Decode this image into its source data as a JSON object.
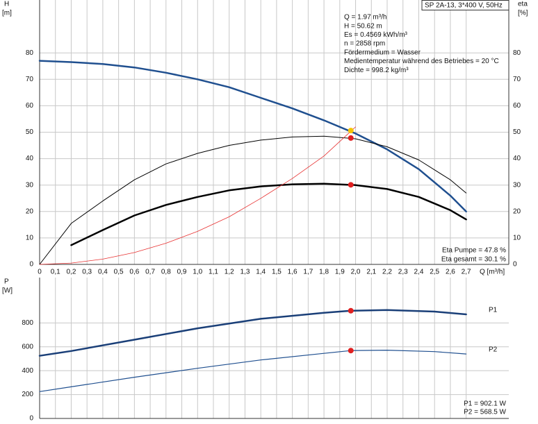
{
  "chart_data": [
    {
      "type": "line",
      "title": "SP 2A-13, 3*400 V, 50Hz",
      "y_label": "H",
      "y_unit": "[m]",
      "y2_label": "eta",
      "y2_unit": "[%]",
      "x_label": "Q [m³/h]",
      "xlim": [
        0,
        2.97
      ],
      "ylim": [
        0,
        100
      ],
      "y2lim": [
        0,
        100
      ],
      "xticks": [
        0,
        {
          "value": 0.1,
          "label": "0,1"
        },
        {
          "value": 0.2,
          "label": "0,2"
        },
        {
          "value": 0.3,
          "label": "0,3"
        },
        {
          "value": 0.4,
          "label": "0,4"
        },
        {
          "value": 0.5,
          "label": "0,5"
        },
        {
          "value": 0.6,
          "label": "0,6"
        },
        {
          "value": 0.7,
          "label": "0,7"
        },
        {
          "value": 0.8,
          "label": "0,8"
        },
        {
          "value": 0.9,
          "label": "0,9"
        },
        {
          "value": 1.0,
          "label": "1,0"
        },
        {
          "value": 1.1,
          "label": "1,1"
        },
        {
          "value": 1.2,
          "label": "1,2"
        },
        {
          "value": 1.3,
          "label": "1,3"
        },
        {
          "value": 1.4,
          "label": "1,4"
        },
        {
          "value": 1.5,
          "label": "1,5"
        },
        {
          "value": 1.6,
          "label": "1,6"
        },
        {
          "value": 1.7,
          "label": "1,7"
        },
        {
          "value": 1.8,
          "label": "1,8"
        },
        {
          "value": 1.9,
          "label": "1,9"
        },
        {
          "value": 2.0,
          "label": "2,0"
        },
        {
          "value": 2.1,
          "label": "2,1"
        },
        {
          "value": 2.2,
          "label": "2,2"
        },
        {
          "value": 2.3,
          "label": "2,3"
        },
        {
          "value": 2.4,
          "label": "2,4"
        },
        {
          "value": 2.5,
          "label": "2,5"
        },
        {
          "value": 2.6,
          "label": "2,6"
        },
        {
          "value": 2.7,
          "label": "2,7"
        }
      ],
      "xtick_labels": true,
      "yticks": [
        0,
        10,
        20,
        30,
        40,
        50,
        60,
        70,
        80
      ],
      "y2ticks": [
        0,
        10,
        20,
        30,
        40,
        50,
        60,
        70,
        80
      ],
      "grid": true,
      "series": [
        {
          "color": "#1f4f8f",
          "width": 2.5,
          "x": [
            0,
            0.2,
            0.4,
            0.6,
            0.8,
            1.0,
            1.2,
            1.4,
            1.6,
            1.8,
            2.0,
            2.2,
            2.4,
            2.6,
            2.7
          ],
          "values": [
            77,
            76.5,
            75.8,
            74.5,
            72.5,
            70,
            67,
            63,
            59,
            54.5,
            49.5,
            43.5,
            36,
            26,
            20
          ]
        },
        {
          "color": "#000000",
          "width": 1,
          "axis": "y2",
          "x": [
            0,
            0.2,
            0.4,
            0.6,
            0.8,
            1.0,
            1.2,
            1.4,
            1.6,
            1.8,
            2.0,
            2.2,
            2.4,
            2.6,
            2.7
          ],
          "values": [
            0,
            15.5,
            24,
            32,
            38,
            42,
            45,
            47,
            48.2,
            48.5,
            47.5,
            44.5,
            39.5,
            32,
            27
          ]
        },
        {
          "color": "#000000",
          "width": 2.5,
          "axis": "y2",
          "x": [
            0.2,
            0.4,
            0.6,
            0.8,
            1.0,
            1.2,
            1.4,
            1.6,
            1.8,
            2.0,
            2.2,
            2.4,
            2.6,
            2.7
          ],
          "values": [
            7.3,
            13,
            18.5,
            22.5,
            25.5,
            28,
            29.5,
            30.3,
            30.5,
            30,
            28.5,
            25.5,
            20.5,
            17
          ]
        },
        {
          "color": "#e83030",
          "width": 0.8,
          "x": [
            0,
            0.2,
            0.4,
            0.6,
            0.8,
            1.0,
            1.2,
            1.4,
            1.6,
            1.8,
            2.0
          ],
          "values": [
            0,
            0.5,
            2,
            4.5,
            8,
            12.5,
            18,
            25,
            32.5,
            41,
            52
          ]
        }
      ],
      "points": [
        {
          "x": 1.97,
          "y": 50.62,
          "color": "#f5c400"
        },
        {
          "x": 1.97,
          "y": 47.8,
          "color": "#e02020"
        },
        {
          "x": 1.97,
          "y": 30.1,
          "color": "#e02020"
        }
      ],
      "annotations": [
        "Q = 1.97 m³/h",
        "H = 50.62 m",
        "Es = 0.4569 kWh/m³",
        "n = 2858 rpm",
        "Fördermedium = Wasser",
        "Medientemperatur während des Betriebes = 20 °C",
        "Dichte = 998.2 kg/m³"
      ],
      "eta_notes": [
        "Eta Pumpe = 47.8 %",
        "Eta gesamt = 30.1 %"
      ]
    },
    {
      "type": "line",
      "y_label": "P",
      "y_unit": "[W]",
      "xlim": [
        0,
        2.97
      ],
      "ylim": [
        0,
        1180
      ],
      "xticks": [
        0,
        0.1,
        0.2,
        0.3,
        0.4,
        0.5,
        0.6,
        0.7,
        0.8,
        0.9,
        1.0,
        1.1,
        1.2,
        1.3,
        1.4,
        1.5,
        1.6,
        1.7,
        1.8,
        1.9,
        2.0,
        2.1,
        2.2,
        2.3,
        2.4,
        2.5,
        2.6,
        2.7
      ],
      "xtick_labels": false,
      "yticks": [
        0,
        200,
        400,
        600,
        800
      ],
      "grid": true,
      "series": [
        {
          "name": "P1",
          "color": "#1a3f78",
          "width": 2.5,
          "x": [
            0,
            0.2,
            0.6,
            1.0,
            1.4,
            1.8,
            1.97,
            2.2,
            2.5,
            2.7
          ],
          "values": [
            525,
            565,
            660,
            755,
            835,
            885,
            902.1,
            908,
            895,
            872
          ]
        },
        {
          "name": "P2",
          "color": "#1f4f8f",
          "width": 1.2,
          "x": [
            0,
            0.2,
            0.6,
            1.0,
            1.4,
            1.8,
            1.97,
            2.2,
            2.5,
            2.7
          ],
          "values": [
            225,
            265,
            345,
            420,
            490,
            545,
            568.5,
            572,
            560,
            540
          ]
        }
      ],
      "points": [
        {
          "x": 1.97,
          "y": 902.1,
          "color": "#e02020"
        },
        {
          "x": 1.97,
          "y": 568.5,
          "color": "#e02020"
        }
      ],
      "notes": [
        "P1 = 902.1 W",
        "P2 = 568.5 W"
      ]
    }
  ]
}
